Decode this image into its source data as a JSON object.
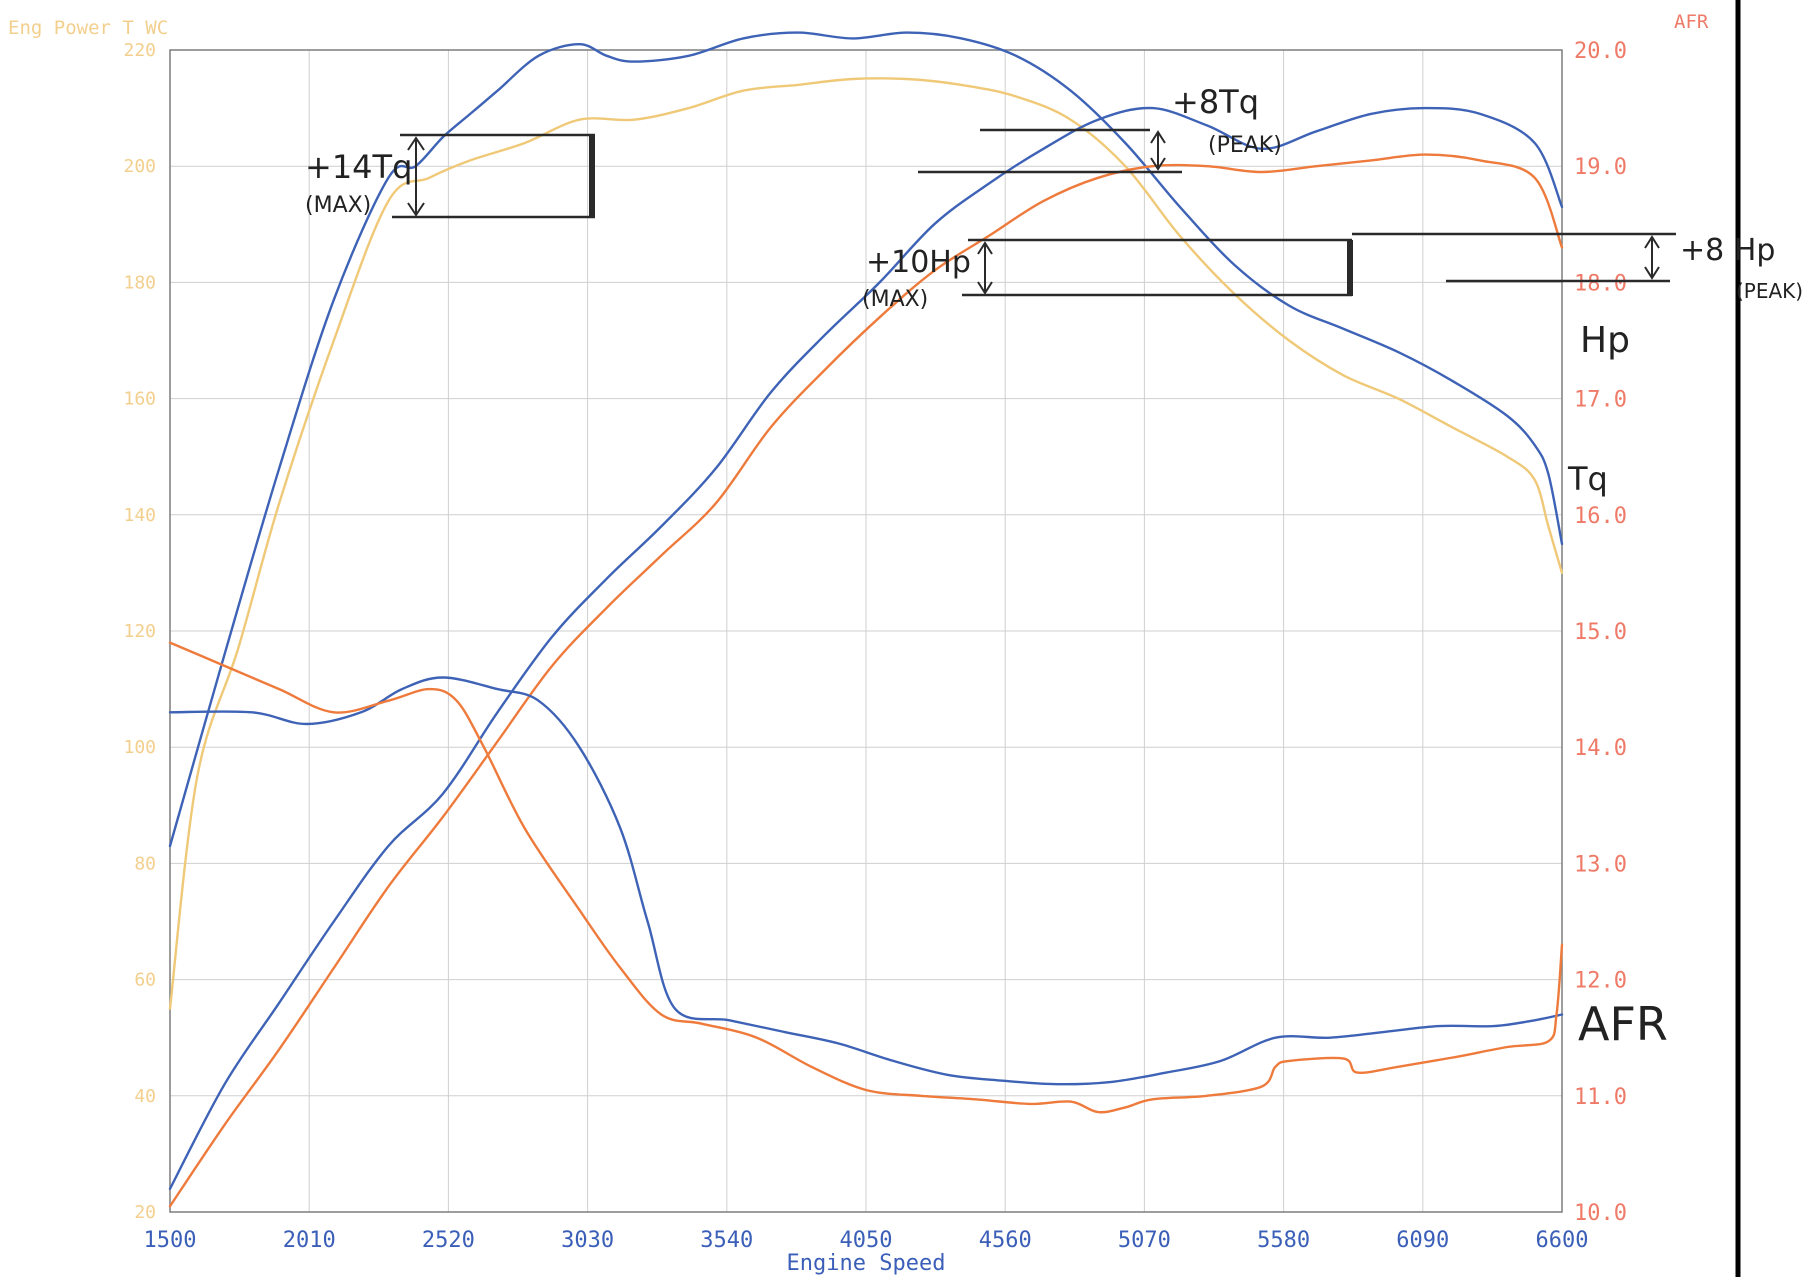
{
  "chart_data": {
    "type": "line",
    "title": "",
    "left_axis_title": "Eng Power T WC",
    "right_axis_title": "AFR",
    "xlabel": "Engine Speed",
    "xlim": [
      1500,
      6600
    ],
    "x_ticks": [
      "1500",
      "2010",
      "2520",
      "3030",
      "3540",
      "4050",
      "4560",
      "5070",
      "5580",
      "6090",
      "6600"
    ],
    "ylim_left": [
      20,
      220
    ],
    "y_left_ticks": [
      "20",
      "40",
      "60",
      "80",
      "100",
      "120",
      "140",
      "160",
      "180",
      "200",
      "220"
    ],
    "ylim_right": [
      10,
      20
    ],
    "y_right_ticks": [
      "10.0",
      "11.0",
      "12.0",
      "13.0",
      "14.0",
      "15.0",
      "16.0",
      "17.0",
      "18.0",
      "19.0",
      "20.0"
    ],
    "grid": true,
    "colors": {
      "blue": "#3e63b6",
      "orange": "#ee7a3c",
      "yellow": "#efc978",
      "red": "#ec5b5b",
      "ink": "#222222"
    },
    "series": [
      {
        "axis": "left",
        "color": "blue",
        "x": [
          1500,
          1700,
          1900,
          2100,
          2300,
          2400,
          2500,
          2600,
          2700,
          2850,
          3000,
          3100,
          3200,
          3400,
          3600,
          3800,
          4000,
          4200,
          4400,
          4600,
          4800,
          5000,
          5200,
          5400,
          5600,
          5800,
          6000,
          6200,
          6400,
          6500,
          6550,
          6600
        ],
        "y": [
          83,
          116,
          148,
          177,
          198,
          200,
          205,
          209,
          213,
          219,
          221,
          219,
          218,
          219,
          222,
          223,
          222,
          223,
          222,
          219,
          213,
          204,
          193,
          183,
          176,
          172,
          168,
          163,
          157,
          152,
          147,
          135
        ]
      },
      {
        "axis": "left",
        "color": "yellow",
        "x": [
          1500,
          1600,
          1750,
          1900,
          2100,
          2300,
          2450,
          2600,
          2800,
          3000,
          3200,
          3400,
          3600,
          3800,
          4000,
          4200,
          4400,
          4600,
          4800,
          5000,
          5200,
          5400,
          5600,
          5800,
          6000,
          6200,
          6400,
          6500,
          6550,
          6600
        ],
        "y": [
          55,
          95,
          117,
          142,
          170,
          194,
          198,
          201,
          204,
          208,
          208,
          210,
          213,
          214,
          215,
          215,
          214,
          212,
          208,
          200,
          188,
          178,
          170,
          164,
          160,
          155,
          150,
          146,
          138,
          130
        ]
      },
      {
        "axis": "left",
        "color": "blue",
        "x": [
          1500,
          1700,
          1900,
          2100,
          2300,
          2500,
          2700,
          2900,
          3100,
          3300,
          3500,
          3700,
          3900,
          4100,
          4300,
          4500,
          4700,
          4900,
          5100,
          5300,
          5500,
          5700,
          5900,
          6100,
          6300,
          6500,
          6600
        ],
        "y": [
          24,
          42,
          56,
          70,
          83,
          92,
          106,
          119,
          129,
          138,
          148,
          161,
          171,
          180,
          190,
          197,
          203,
          208,
          210,
          207,
          203,
          206,
          209,
          210,
          209,
          204,
          193
        ]
      },
      {
        "axis": "left",
        "color": "orange",
        "x": [
          1500,
          1700,
          1900,
          2100,
          2300,
          2500,
          2700,
          2900,
          3100,
          3300,
          3500,
          3700,
          3900,
          4100,
          4300,
          4500,
          4700,
          4900,
          5100,
          5300,
          5500,
          5700,
          5900,
          6100,
          6300,
          6500,
          6600
        ],
        "y": [
          21,
          35,
          48,
          62,
          76,
          88,
          101,
          114,
          124,
          133,
          142,
          155,
          165,
          174,
          182,
          188,
          194,
          198,
          200,
          200,
          199,
          200,
          201,
          202,
          201,
          198,
          186
        ]
      },
      {
        "axis": "right",
        "color": "blue",
        "x": [
          1500,
          1800,
          2000,
          2200,
          2350,
          2500,
          2700,
          2850,
          3000,
          3150,
          3250,
          3350,
          3550,
          3750,
          3950,
          4150,
          4350,
          4550,
          4750,
          4950,
          5150,
          5350,
          5550,
          5750,
          5950,
          6150,
          6350,
          6500,
          6600
        ],
        "y": [
          14.3,
          14.3,
          14.2,
          14.3,
          14.5,
          14.6,
          14.5,
          14.4,
          14.0,
          13.3,
          12.5,
          11.75,
          11.65,
          11.55,
          11.45,
          11.3,
          11.18,
          11.13,
          11.1,
          11.12,
          11.2,
          11.3,
          11.5,
          11.5,
          11.55,
          11.6,
          11.6,
          11.65,
          11.7
        ]
      },
      {
        "axis": "right",
        "color": "orange",
        "x": [
          1500,
          1700,
          1900,
          2100,
          2300,
          2450,
          2550,
          2650,
          2800,
          3000,
          3150,
          3300,
          3450,
          3650,
          3850,
          4050,
          4250,
          4450,
          4650,
          4800,
          4900,
          5000,
          5100,
          5300,
          5500,
          5550,
          5600,
          5800,
          5850,
          6000,
          6200,
          6400,
          6550,
          6580,
          6600
        ],
        "y": [
          14.9,
          14.7,
          14.5,
          14.3,
          14.4,
          14.5,
          14.4,
          14.0,
          13.3,
          12.6,
          12.1,
          11.7,
          11.62,
          11.5,
          11.25,
          11.05,
          11.0,
          10.97,
          10.93,
          10.95,
          10.86,
          10.9,
          10.97,
          11.0,
          11.08,
          11.25,
          11.3,
          11.32,
          11.2,
          11.25,
          11.33,
          11.42,
          11.47,
          11.7,
          12.3
        ]
      }
    ],
    "annotations": [
      {
        "text": "+14Tq",
        "sub": "(MAX)"
      },
      {
        "text": "+8Tq",
        "sub": "(PEAK)"
      },
      {
        "text": "+10Hp",
        "sub": "(MAX)"
      },
      {
        "text": "+8 Hp",
        "sub": "(PEAK)"
      },
      {
        "text": "Hp"
      },
      {
        "text": "Tq"
      },
      {
        "text": "AFR"
      }
    ]
  }
}
